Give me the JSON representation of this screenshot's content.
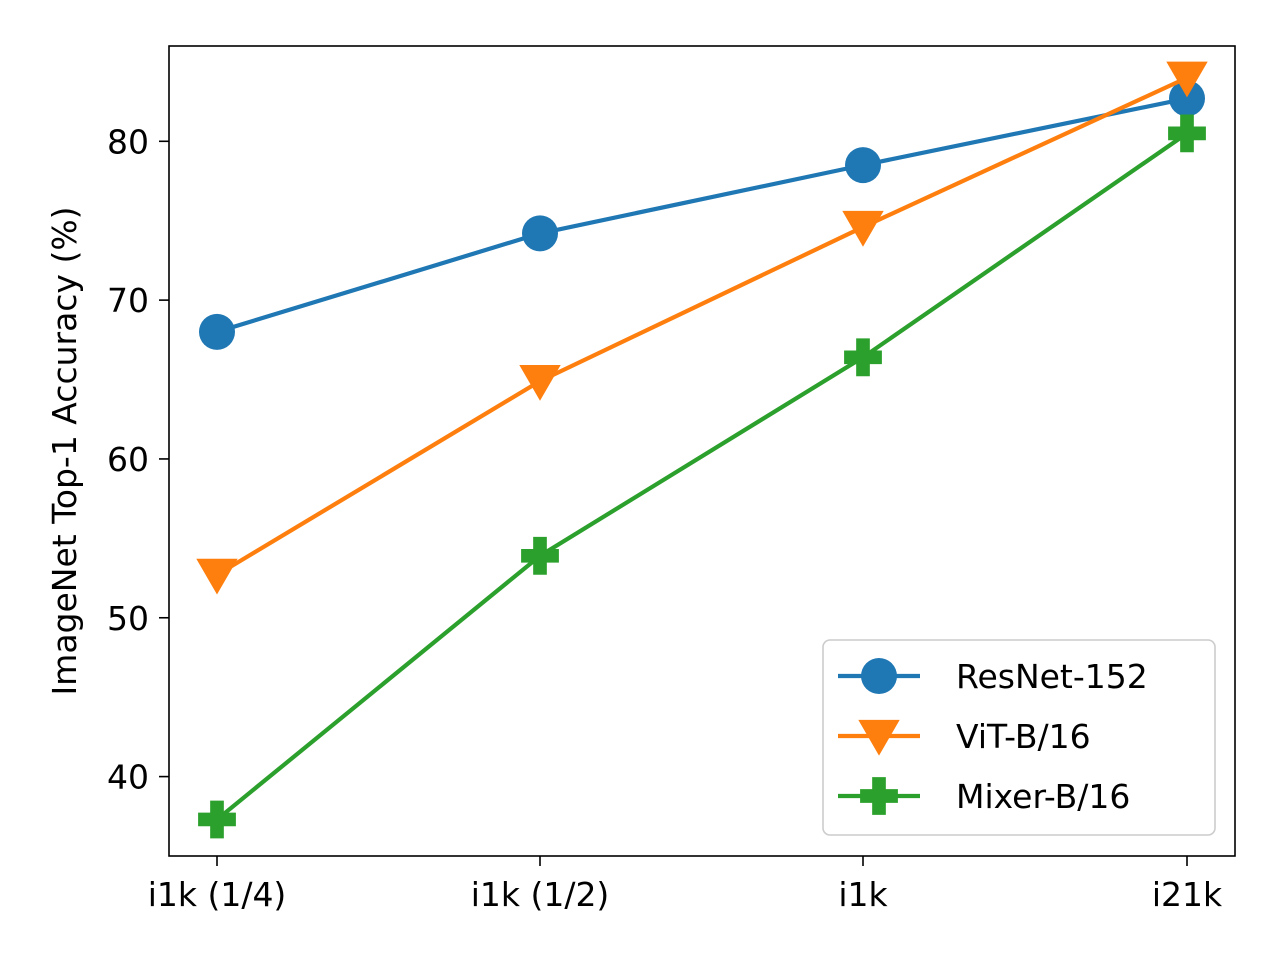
{
  "chart_data": {
    "type": "line",
    "title": "",
    "xlabel": "",
    "ylabel": "ImageNet Top-1 Accuracy (%)",
    "categories": [
      "i1k (1/4)",
      "i1k (1/2)",
      "i1k",
      "i21k"
    ],
    "ylim": [
      35,
      86
    ],
    "yticks": [
      40,
      50,
      60,
      70,
      80
    ],
    "grid": false,
    "legend_position": "lower right",
    "series": [
      {
        "name": "ResNet-152",
        "color": "#1f77b4",
        "marker": "circle",
        "values": [
          68.0,
          74.2,
          78.5,
          82.7
        ]
      },
      {
        "name": "ViT-B/16",
        "color": "#ff7f0e",
        "marker": "triangle-down",
        "values": [
          52.7,
          64.9,
          74.6,
          84.0
        ]
      },
      {
        "name": "Mixer-B/16",
        "color": "#2ca02c",
        "marker": "plus-filled",
        "values": [
          37.3,
          53.9,
          66.4,
          80.5
        ]
      }
    ]
  }
}
